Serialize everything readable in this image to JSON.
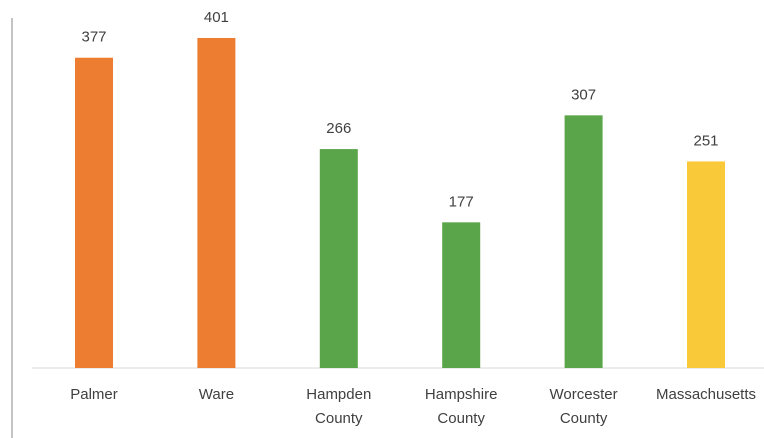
{
  "chart_data": {
    "type": "bar",
    "categories": [
      "Palmer",
      "Ware",
      "Hampden County",
      "Hampshire County",
      "Worcester County",
      "Massachusetts"
    ],
    "values": [
      377,
      401,
      266,
      177,
      307,
      251
    ],
    "colors": [
      "#ed7d31",
      "#ed7d31",
      "#5aa54a",
      "#5aa54a",
      "#5aa54a",
      "#f9c93a"
    ]
  }
}
